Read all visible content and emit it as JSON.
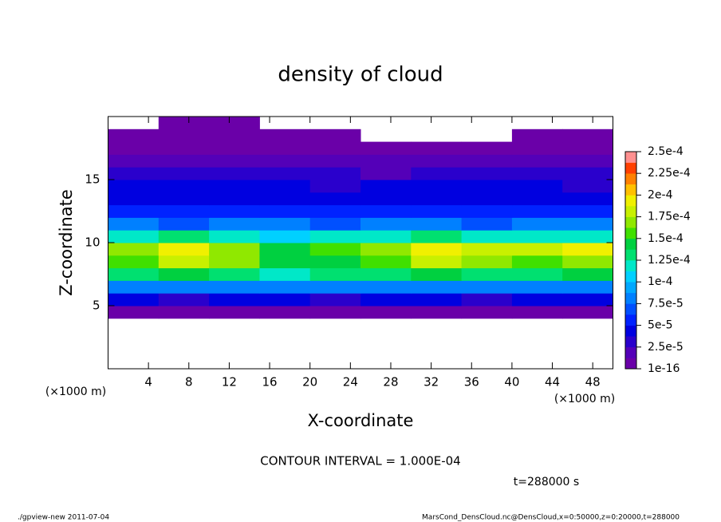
{
  "chart_data": {
    "type": "heatmap",
    "title": "density of cloud",
    "xlabel": "X-coordinate",
    "ylabel": "Z-coordinate",
    "x_unit": "(×1000 m)",
    "x_unit_right": "(×1000 m)",
    "annotation": "CONTOUR INTERVAL = 1.000E-04",
    "time_label": "t=288000 s",
    "footer_left": "./gpview-new   2011-07-04",
    "footer_right": "MarsCond_DensCloud.nc@DensCloud,x=0:50000,z=0:20000,t=288000",
    "xlim": [
      0,
      50
    ],
    "ylim": [
      0,
      20
    ],
    "xticks": [
      4,
      8,
      12,
      16,
      20,
      24,
      28,
      32,
      36,
      40,
      44,
      48
    ],
    "yticks": [
      5,
      10,
      15
    ],
    "x_bins": [
      0,
      5,
      10,
      15,
      20,
      25,
      30,
      35,
      40,
      45,
      50
    ],
    "z_bins": [
      0,
      1,
      2,
      3,
      4,
      5,
      6,
      7,
      8,
      9,
      10,
      11,
      12,
      13,
      14,
      15,
      16,
      17,
      18,
      19,
      20
    ],
    "values": [
      [
        null,
        null,
        null,
        null,
        null,
        null,
        null,
        null,
        null,
        null
      ],
      [
        null,
        null,
        null,
        null,
        null,
        null,
        null,
        null,
        null,
        null
      ],
      [
        null,
        null,
        null,
        null,
        null,
        null,
        null,
        null,
        null,
        null
      ],
      [
        null,
        null,
        null,
        null,
        null,
        null,
        null,
        null,
        null,
        null
      ],
      [
        1e-05,
        1e-05,
        1e-05,
        1e-05,
        1e-05,
        1e-05,
        1e-05,
        1e-05,
        1e-05,
        1e-05
      ],
      [
        4e-05,
        3.5e-05,
        4e-05,
        4e-05,
        3.5e-05,
        4e-05,
        4e-05,
        3.5e-05,
        4e-05,
        4e-05
      ],
      [
        8e-05,
        8.5e-05,
        8e-05,
        8e-05,
        8e-05,
        8e-05,
        8.5e-05,
        8e-05,
        8e-05,
        8e-05
      ],
      [
        0.00013,
        0.00014,
        0.00013,
        0.00012,
        0.00013,
        0.00013,
        0.00014,
        0.00013,
        0.00013,
        0.00014
      ],
      [
        0.00016,
        0.00018,
        0.00017,
        0.00014,
        0.00015,
        0.00016,
        0.00018,
        0.00017,
        0.00016,
        0.00017
      ],
      [
        0.00017,
        0.00019,
        0.00017,
        0.00015,
        0.00016,
        0.00017,
        0.00019,
        0.00018,
        0.00018,
        0.00019
      ],
      [
        0.00012,
        0.00013,
        0.00012,
        0.00011,
        0.00012,
        0.00012,
        0.00013,
        0.00012,
        0.00012,
        0.00012
      ],
      [
        8e-05,
        7.5e-05,
        8e-05,
        8e-05,
        7.5e-05,
        8e-05,
        8e-05,
        7.5e-05,
        8e-05,
        8e-05
      ],
      [
        6e-05,
        6e-05,
        5.5e-05,
        6e-05,
        6e-05,
        6e-05,
        5.5e-05,
        6e-05,
        6e-05,
        6e-05
      ],
      [
        5e-05,
        5e-05,
        5e-05,
        4.5e-05,
        5e-05,
        5e-05,
        5e-05,
        4.5e-05,
        5e-05,
        5e-05
      ],
      [
        4e-05,
        4e-05,
        4e-05,
        4e-05,
        3.5e-05,
        4e-05,
        4e-05,
        4e-05,
        4e-05,
        3.5e-05
      ],
      [
        3e-05,
        3e-05,
        3e-05,
        3e-05,
        3e-05,
        2.5e-05,
        3e-05,
        3e-05,
        3e-05,
        3e-05
      ],
      [
        2e-05,
        2e-05,
        2e-05,
        2e-05,
        2e-05,
        2e-05,
        2e-05,
        2e-05,
        2e-05,
        2e-05
      ],
      [
        1e-05,
        1e-05,
        1e-05,
        1e-05,
        1e-05,
        1e-05,
        1e-05,
        1e-05,
        1e-05,
        1e-05
      ],
      [
        5e-06,
        5e-06,
        5e-06,
        5e-06,
        5e-06,
        null,
        null,
        null,
        5e-06,
        5e-06
      ],
      [
        null,
        5e-06,
        5e-06,
        null,
        null,
        null,
        null,
        null,
        null,
        null
      ]
    ],
    "colorbar_ticks": [
      {
        "value": 1e-16,
        "label": "1e-16"
      },
      {
        "value": 2.5e-05,
        "label": "2.5e-5"
      },
      {
        "value": 5e-05,
        "label": "5e-5"
      },
      {
        "value": 7.5e-05,
        "label": "7.5e-5"
      },
      {
        "value": 0.0001,
        "label": "1e-4"
      },
      {
        "value": 0.000125,
        "label": "1.25e-4"
      },
      {
        "value": 0.00015,
        "label": "1.5e-4"
      },
      {
        "value": 0.000175,
        "label": "1.75e-4"
      },
      {
        "value": 0.0002,
        "label": "2e-4"
      },
      {
        "value": 0.000225,
        "label": "2.25e-4"
      },
      {
        "value": 0.00025,
        "label": "2.5e-4"
      }
    ],
    "colors": [
      "#6a00a8",
      "#5400b8",
      "#2a00cc",
      "#0000e0",
      "#0022ff",
      "#0050ff",
      "#0080ff",
      "#00a8ff",
      "#00d0ff",
      "#00e8c8",
      "#00e070",
      "#00d040",
      "#40e000",
      "#90e800",
      "#c8f000",
      "#f0f000",
      "#ffc000",
      "#ff8000",
      "#ff4000",
      "#ff9090"
    ]
  }
}
